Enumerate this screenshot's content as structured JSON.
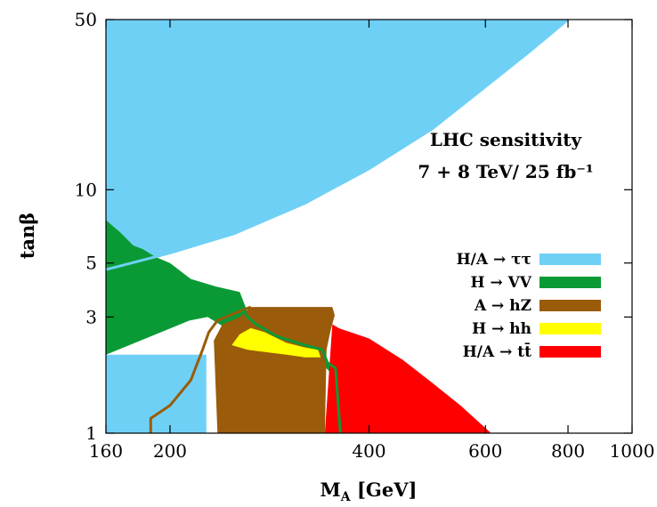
{
  "chart_data": {
    "type": "area",
    "title": "",
    "annotation": {
      "line1": "LHC sensitivity",
      "line2": "7 + 8 TeV/ 25 fb⁻¹"
    },
    "xlabel": "M_A [GeV]",
    "xlabel_main": "M",
    "xlabel_sub": "A",
    "xlabel_unit": " [GeV]",
    "ylabel": "tanβ",
    "xlim": [
      160,
      1000
    ],
    "ylim": [
      1,
      50
    ],
    "xscale": "log",
    "yscale": "log",
    "x_ticks": [
      {
        "value": 160,
        "label": "160"
      },
      {
        "value": 200,
        "label": "200"
      },
      {
        "value": 400,
        "label": "400"
      },
      {
        "value": 600,
        "label": "600"
      },
      {
        "value": 800,
        "label": "800"
      },
      {
        "value": 1000,
        "label": "1000"
      }
    ],
    "y_ticks": [
      {
        "value": 1,
        "label": "1"
      },
      {
        "value": 3,
        "label": "3"
      },
      {
        "value": 5,
        "label": "5"
      },
      {
        "value": 10,
        "label": "10"
      },
      {
        "value": 50,
        "label": "50"
      }
    ],
    "grid": false,
    "legend_position": "right",
    "series": [
      {
        "name": "H/A → ττ",
        "color": "#6fd0f5",
        "regions": [
          [
            [
              160,
              4.7
            ],
            [
              200,
              5.5
            ],
            [
              250,
              6.6
            ],
            [
              320,
              8.8
            ],
            [
              400,
              12.2
            ],
            [
              500,
              17.9
            ],
            [
              600,
              26.5
            ],
            [
              700,
              37.0
            ],
            [
              800,
              50
            ],
            [
              160,
              50
            ]
          ],
          [
            [
              160,
              1
            ],
            [
              227,
              1
            ],
            [
              227,
              2.1
            ],
            [
              160,
              2.1
            ]
          ]
        ]
      },
      {
        "name": "H → VV",
        "color": "#0a9a35",
        "regions": [
          [
            [
              160,
              7.5
            ],
            [
              168,
              6.7
            ],
            [
              176,
              5.9
            ],
            [
              182,
              5.7
            ],
            [
              190,
              5.3
            ],
            [
              200,
              5.0
            ],
            [
              215,
              4.3
            ],
            [
              235,
              4.0
            ],
            [
              255,
              3.8
            ],
            [
              262,
              3.15
            ],
            [
              270,
              2.9
            ],
            [
              300,
              2.4
            ],
            [
              340,
              2.2
            ],
            [
              345,
              2.0
            ],
            [
              355,
              1.85
            ],
            [
              362,
              1.0
            ],
            [
              353,
              1.0
            ],
            [
              348,
              1.8
            ],
            [
              335,
              2.0
            ],
            [
              300,
              2.2
            ],
            [
              270,
              2.4
            ],
            [
              246,
              2.65
            ],
            [
              228,
              3.0
            ],
            [
              214,
              2.9
            ],
            [
              160,
              2.1
            ]
          ]
        ]
      },
      {
        "name": "A → hZ",
        "color": "#9a5b0a",
        "regions": [
          [
            [
              236,
              1
            ],
            [
              233,
              2.4
            ],
            [
              240,
              2.8
            ],
            [
              255,
              3.0
            ],
            [
              265,
              3.3
            ],
            [
              352,
              3.3
            ],
            [
              355,
              3.05
            ],
            [
              350,
              2.65
            ],
            [
              345,
              2.2
            ],
            [
              343,
              1.0
            ]
          ]
        ]
      },
      {
        "name": "H → hh",
        "color": "#ffff00",
        "regions": [
          [
            [
              248,
              2.3
            ],
            [
              255,
              2.55
            ],
            [
              265,
              2.7
            ],
            [
              278,
              2.6
            ],
            [
              300,
              2.35
            ],
            [
              320,
              2.25
            ],
            [
              335,
              2.2
            ],
            [
              338,
              2.05
            ],
            [
              320,
              2.05
            ],
            [
              300,
              2.1
            ],
            [
              280,
              2.15
            ],
            [
              262,
              2.2
            ]
          ]
        ]
      },
      {
        "name": "H/A → tt̄",
        "color": "#ff0000",
        "regions": [
          [
            [
              343,
              1
            ],
            [
              352,
              2.8
            ],
            [
              360,
              2.7
            ],
            [
              400,
              2.45
            ],
            [
              450,
              2.0
            ],
            [
              500,
              1.6
            ],
            [
              550,
              1.3
            ],
            [
              600,
              1.05
            ],
            [
              612,
              1.0
            ]
          ]
        ]
      }
    ],
    "contours": [
      {
        "name": "hZ boundary",
        "color": "#9a5b0a",
        "points": [
          [
            187,
            1
          ],
          [
            187,
            1.15
          ],
          [
            200,
            1.3
          ],
          [
            215,
            1.65
          ],
          [
            224,
            2.2
          ],
          [
            229,
            2.6
          ],
          [
            236,
            2.9
          ],
          [
            250,
            3.1
          ],
          [
            265,
            3.3
          ]
        ]
      },
      {
        "name": "VV boundary",
        "color": "#0a9a35",
        "points": [
          [
            258,
            3.2
          ],
          [
            262,
            3.0
          ],
          [
            270,
            2.8
          ],
          [
            290,
            2.5
          ],
          [
            320,
            2.3
          ],
          [
            340,
            2.2
          ],
          [
            346,
            1.95
          ],
          [
            356,
            1.85
          ],
          [
            362,
            1.0
          ]
        ]
      },
      {
        "name": "ττ boundary",
        "color": "#6fd0f5",
        "points": [
          [
            160,
            4.7
          ],
          [
            200,
            5.5
          ],
          [
            250,
            6.6
          ],
          [
            320,
            8.8
          ],
          [
            400,
            12.2
          ],
          [
            500,
            17.9
          ],
          [
            600,
            26.5
          ],
          [
            700,
            37.0
          ],
          [
            800,
            50
          ]
        ]
      }
    ]
  }
}
